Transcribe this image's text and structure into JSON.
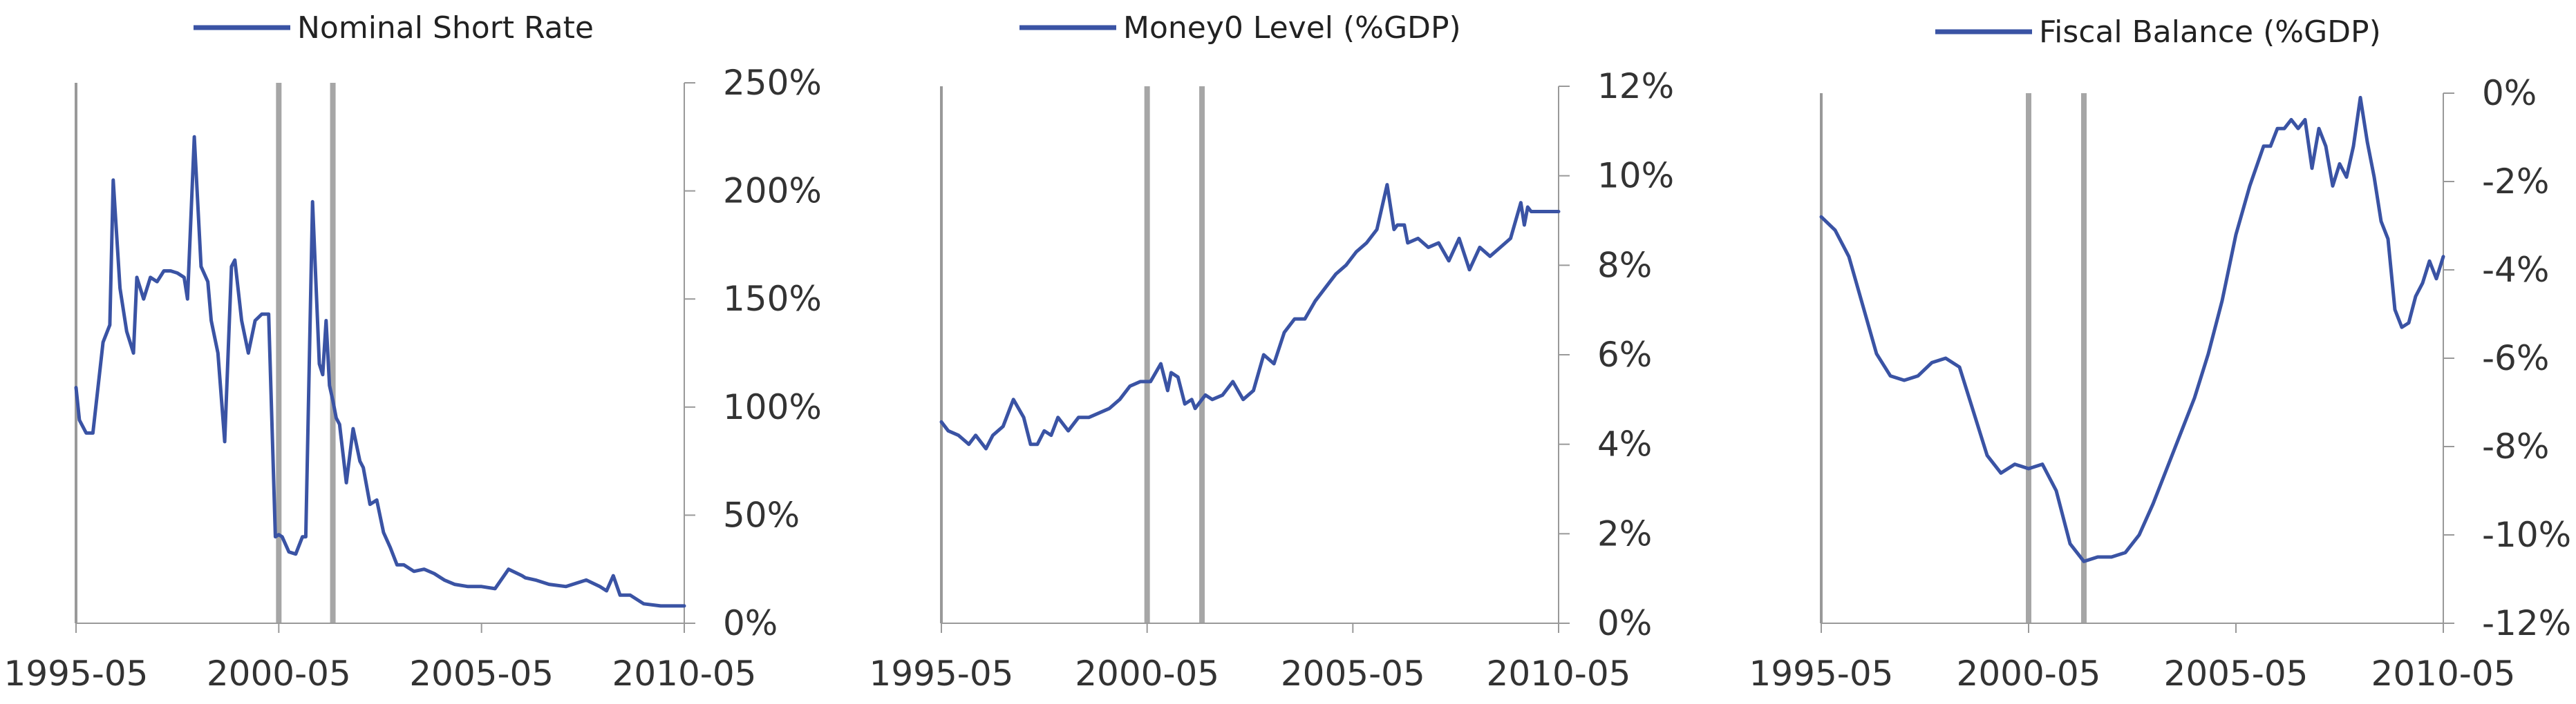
{
  "colors": {
    "series": "#3a53a4",
    "event_line": "#a6a6a6",
    "axis": "#999999",
    "text": "#333333"
  },
  "chart_data": [
    {
      "type": "line",
      "series": [
        {
          "name": "Nominal Short Rate",
          "x": [
            "1995-05",
            "1995-06",
            "1995-08",
            "1995-10",
            "1996-01",
            "1996-03",
            "1996-04",
            "1996-06",
            "1996-08",
            "1996-10",
            "1996-11",
            "1997-01",
            "1997-03",
            "1997-05",
            "1997-07",
            "1997-09",
            "1997-11",
            "1998-01",
            "1998-02",
            "1998-04",
            "1998-06",
            "1998-08",
            "1998-09",
            "1998-11",
            "1999-01",
            "1999-03",
            "1999-04",
            "1999-06",
            "1999-08",
            "1999-10",
            "1999-12",
            "2000-01",
            "2000-02",
            "2000-04",
            "2000-05",
            "2000-06",
            "2000-08",
            "2000-10",
            "2000-12",
            "2001-01",
            "2001-03",
            "2001-05",
            "2001-06",
            "2001-07",
            "2001-08",
            "2001-09",
            "2001-10",
            "2001-11",
            "2002-01",
            "2002-03",
            "2002-05",
            "2002-06",
            "2002-08",
            "2002-10",
            "2002-12",
            "2003-02",
            "2003-04",
            "2003-06",
            "2003-09",
            "2003-12",
            "2004-03",
            "2004-06",
            "2004-09",
            "2005-01",
            "2005-05",
            "2005-09",
            "2006-01",
            "2006-05",
            "2006-06",
            "2006-09",
            "2007-01",
            "2007-06",
            "2007-12",
            "2008-04",
            "2008-06",
            "2008-08",
            "2008-10",
            "2009-01",
            "2009-05",
            "2009-10",
            "2010-05"
          ],
          "y": [
            109,
            94,
            88,
            88,
            130,
            138,
            205,
            155,
            135,
            125,
            160,
            150,
            160,
            158,
            163,
            163,
            162,
            160,
            150,
            225,
            165,
            158,
            140,
            125,
            84,
            165,
            168,
            140,
            125,
            140,
            143,
            143,
            143,
            40,
            41,
            40,
            33,
            32,
            40,
            40,
            195,
            120,
            115,
            140,
            110,
            103,
            95,
            92,
            65,
            90,
            75,
            72,
            55,
            57,
            42,
            35,
            27,
            27,
            24,
            25,
            23,
            20,
            18,
            17,
            17,
            16,
            25,
            22,
            21,
            20,
            18,
            17,
            20,
            17,
            15,
            22,
            13,
            13,
            9,
            8,
            8
          ]
        }
      ],
      "events": [
        "2000-05",
        "2001-09"
      ],
      "x_ticks": [
        "1995-05",
        "2000-05",
        "2005-05",
        "2010-05"
      ],
      "y_ticks": [
        0,
        50,
        100,
        150,
        200,
        250
      ],
      "y_tick_labels": [
        "0%",
        "50%",
        "100%",
        "150%",
        "200%",
        "250%"
      ],
      "ylim": [
        0,
        250
      ],
      "xlim": [
        "1995-05",
        "2010-05"
      ],
      "legend_position": "top"
    },
    {
      "type": "line",
      "series": [
        {
          "name": "Money0 Level (%GDP)",
          "x": [
            "1995-05",
            "1995-07",
            "1995-10",
            "1996-01",
            "1996-03",
            "1996-06",
            "1996-08",
            "1996-11",
            "1997-01",
            "1997-02",
            "1997-05",
            "1997-07",
            "1997-09",
            "1997-11",
            "1998-01",
            "1998-03",
            "1998-06",
            "1998-09",
            "1998-12",
            "1999-03",
            "1999-06",
            "1999-09",
            "1999-12",
            "2000-03",
            "2000-05",
            "2000-06",
            "2000-09",
            "2000-11",
            "2000-12",
            "2001-02",
            "2001-04",
            "2001-06",
            "2001-07",
            "2001-09",
            "2001-10",
            "2001-12",
            "2002-03",
            "2002-06",
            "2002-09",
            "2002-12",
            "2003-03",
            "2003-06",
            "2003-09",
            "2003-12",
            "2004-03",
            "2004-06",
            "2004-09",
            "2004-12",
            "2005-03",
            "2005-06",
            "2005-09",
            "2005-12",
            "2006-03",
            "2006-05",
            "2006-06",
            "2006-08",
            "2006-09",
            "2006-12",
            "2007-03",
            "2007-06",
            "2007-09",
            "2007-12",
            "2008-03",
            "2008-06",
            "2008-09",
            "2008-12",
            "2009-03",
            "2009-06",
            "2009-07",
            "2009-08",
            "2009-09",
            "2009-12",
            "2010-03",
            "2010-05"
          ],
          "y": [
            4.5,
            4.3,
            4.2,
            4.0,
            4.2,
            3.9,
            4.2,
            4.4,
            4.8,
            5.0,
            4.6,
            4.0,
            4.0,
            4.3,
            4.2,
            4.6,
            4.3,
            4.6,
            4.6,
            4.7,
            4.8,
            5.0,
            5.3,
            5.4,
            5.4,
            5.4,
            5.8,
            5.2,
            5.6,
            5.5,
            4.9,
            5.0,
            4.8,
            5.0,
            5.1,
            5.0,
            5.1,
            5.4,
            5.0,
            5.2,
            6.0,
            5.8,
            6.5,
            6.8,
            6.8,
            7.2,
            7.5,
            7.8,
            8.0,
            8.3,
            8.5,
            8.8,
            9.8,
            8.8,
            8.9,
            8.9,
            8.5,
            8.6,
            8.4,
            8.5,
            8.1,
            8.6,
            7.9,
            8.4,
            8.2,
            8.4,
            8.6,
            9.4,
            8.9,
            9.3,
            9.2,
            9.2,
            9.2,
            9.2
          ]
        }
      ],
      "events": [
        "2000-05",
        "2001-09"
      ],
      "x_ticks": [
        "1995-05",
        "2000-05",
        "2005-05",
        "2010-05"
      ],
      "y_ticks": [
        0,
        2,
        4,
        6,
        8,
        10,
        12
      ],
      "y_tick_labels": [
        "0%",
        "2%",
        "4%",
        "6%",
        "8%",
        "10%",
        "12%"
      ],
      "ylim": [
        0,
        12
      ],
      "xlim": [
        "1995-05",
        "2010-05"
      ],
      "legend_position": "top"
    },
    {
      "type": "line",
      "series": [
        {
          "name": "Fiscal Balance (%GDP)",
          "x": [
            "1995-05",
            "1995-09",
            "1996-01",
            "1996-05",
            "1996-09",
            "1997-01",
            "1997-05",
            "1997-09",
            "1998-01",
            "1998-05",
            "1998-09",
            "1999-01",
            "1999-05",
            "1999-09",
            "2000-01",
            "2000-05",
            "2000-09",
            "2001-01",
            "2001-05",
            "2001-09",
            "2002-01",
            "2002-05",
            "2002-09",
            "2003-01",
            "2003-05",
            "2003-09",
            "2004-01",
            "2004-05",
            "2004-09",
            "2005-01",
            "2005-05",
            "2005-09",
            "2006-01",
            "2006-03",
            "2006-05",
            "2006-07",
            "2006-09",
            "2006-11",
            "2007-01",
            "2007-03",
            "2007-05",
            "2007-07",
            "2007-09",
            "2007-11",
            "2008-01",
            "2008-03",
            "2008-05",
            "2008-07",
            "2008-09",
            "2008-11",
            "2009-01",
            "2009-03",
            "2009-05",
            "2009-07",
            "2009-09",
            "2009-11",
            "2010-01",
            "2010-03",
            "2010-05"
          ],
          "y": [
            -2.8,
            -3.1,
            -3.7,
            -4.8,
            -5.9,
            -6.4,
            -6.5,
            -6.4,
            -6.1,
            -6.0,
            -6.2,
            -7.2,
            -8.2,
            -8.6,
            -8.4,
            -8.5,
            -8.4,
            -9.0,
            -10.2,
            -10.6,
            -10.5,
            -10.5,
            -10.4,
            -10.0,
            -9.3,
            -8.5,
            -7.7,
            -6.9,
            -5.9,
            -4.7,
            -3.2,
            -2.1,
            -1.2,
            -1.2,
            -0.8,
            -0.8,
            -0.6,
            -0.8,
            -0.6,
            -1.7,
            -0.8,
            -1.2,
            -2.1,
            -1.6,
            -1.9,
            -1.2,
            -0.1,
            -1.1,
            -1.9,
            -2.9,
            -3.3,
            -4.9,
            -5.3,
            -5.2,
            -4.6,
            -4.3,
            -3.8,
            -4.2,
            -3.7
          ]
        }
      ],
      "events": [
        "2000-05",
        "2001-09"
      ],
      "x_ticks": [
        "1995-05",
        "2000-05",
        "2005-05",
        "2010-05"
      ],
      "y_ticks": [
        0,
        -2,
        -4,
        -6,
        -8,
        -10,
        -12
      ],
      "y_tick_labels": [
        "0%",
        "-2%",
        "-4%",
        "-6%",
        "-8%",
        "-10%",
        "-12%"
      ],
      "ylim": [
        -12,
        0
      ],
      "xlim": [
        "1995-05",
        "2010-05"
      ],
      "legend_position": "top"
    }
  ]
}
